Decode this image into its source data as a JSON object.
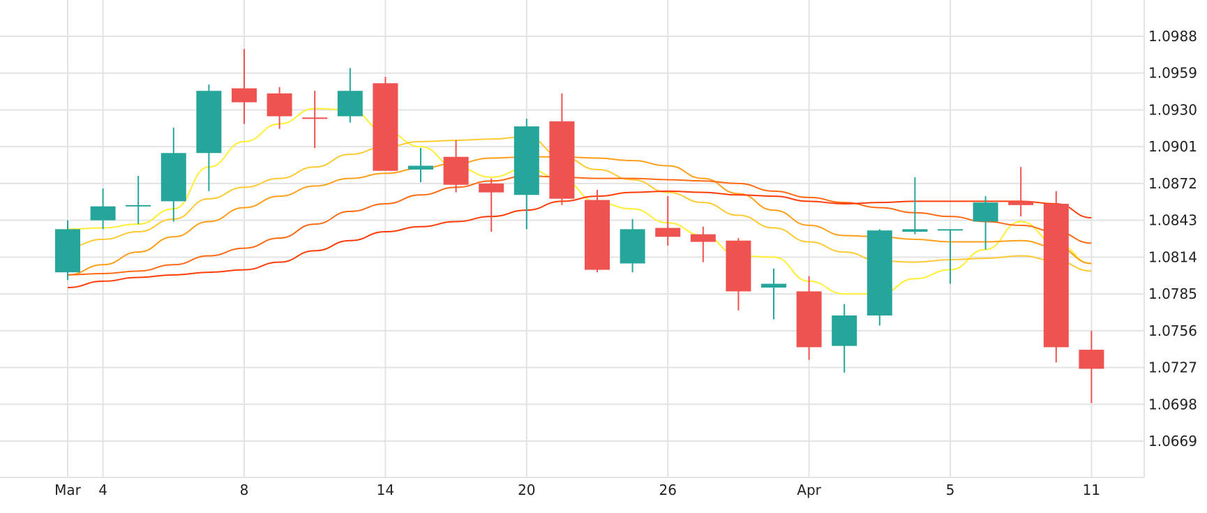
{
  "chart_data": {
    "type": "candlestick",
    "title": "",
    "xlabel": "",
    "ylabel": "",
    "colors": {
      "up": "#26a69a",
      "down": "#ef5350",
      "grid": "#e3e3e3"
    },
    "grid": true,
    "y_axis": {
      "position": "right",
      "ticks": [
        "1.0988",
        "1.0959",
        "1.0930",
        "1.0901",
        "1.0872",
        "1.0843",
        "1.0814",
        "1.0785",
        "1.0756",
        "1.0727",
        "1.0698",
        "1.0669"
      ],
      "ylim": [
        1.064,
        1.1005
      ]
    },
    "x_axis": {
      "ticks": [
        "Mar",
        "4",
        "8",
        "14",
        "20",
        "26",
        "Apr",
        "5",
        "11"
      ]
    },
    "candles": [
      {
        "open": 1.0802,
        "high": 1.0843,
        "low": 1.0796,
        "close": 1.0836
      },
      {
        "open": 1.0843,
        "high": 1.0868,
        "low": 1.0836,
        "close": 1.0854
      },
      {
        "open": 1.0855,
        "high": 1.0878,
        "low": 1.084,
        "close": 1.0855
      },
      {
        "open": 1.0858,
        "high": 1.0916,
        "low": 1.0842,
        "close": 1.0896
      },
      {
        "open": 1.0896,
        "high": 1.095,
        "low": 1.0866,
        "close": 1.0945
      },
      {
        "open": 1.0947,
        "high": 1.0978,
        "low": 1.0919,
        "close": 1.0936
      },
      {
        "open": 1.0943,
        "high": 1.0948,
        "low": 1.0915,
        "close": 1.0925
      },
      {
        "open": 1.0924,
        "high": 1.0945,
        "low": 1.09,
        "close": 1.0923
      },
      {
        "open": 1.0925,
        "high": 1.0963,
        "low": 1.092,
        "close": 1.0945
      },
      {
        "open": 1.0951,
        "high": 1.0956,
        "low": 1.0882,
        "close": 1.0882
      },
      {
        "open": 1.0883,
        "high": 1.09,
        "low": 1.0873,
        "close": 1.0886
      },
      {
        "open": 1.0893,
        "high": 1.0906,
        "low": 1.0865,
        "close": 1.0871
      },
      {
        "open": 1.0872,
        "high": 1.0876,
        "low": 1.0834,
        "close": 1.0865
      },
      {
        "open": 1.0863,
        "high": 1.0923,
        "low": 1.0836,
        "close": 1.0917
      },
      {
        "open": 1.0921,
        "high": 1.0943,
        "low": 1.0855,
        "close": 1.086
      },
      {
        "open": 1.0859,
        "high": 1.0867,
        "low": 1.0802,
        "close": 1.0804
      },
      {
        "open": 1.0809,
        "high": 1.0844,
        "low": 1.0802,
        "close": 1.0836
      },
      {
        "open": 1.0837,
        "high": 1.0862,
        "low": 1.0823,
        "close": 1.083
      },
      {
        "open": 1.0832,
        "high": 1.0838,
        "low": 1.081,
        "close": 1.0826
      },
      {
        "open": 1.0827,
        "high": 1.0829,
        "low": 1.0772,
        "close": 1.0787
      },
      {
        "open": 1.079,
        "high": 1.0805,
        "low": 1.0765,
        "close": 1.0793
      },
      {
        "open": 1.0787,
        "high": 1.0799,
        "low": 1.0733,
        "close": 1.0743
      },
      {
        "open": 1.0744,
        "high": 1.0777,
        "low": 1.0723,
        "close": 1.0768
      },
      {
        "open": 1.0768,
        "high": 1.0836,
        "low": 1.076,
        "close": 1.0835
      },
      {
        "open": 1.0834,
        "high": 1.0877,
        "low": 1.0832,
        "close": 1.0836
      },
      {
        "open": 1.0836,
        "high": 1.0836,
        "low": 1.0793,
        "close": 1.0836
      },
      {
        "open": 1.0842,
        "high": 1.0862,
        "low": 1.082,
        "close": 1.0857
      },
      {
        "open": 1.0858,
        "high": 1.0885,
        "low": 1.0846,
        "close": 1.0855
      },
      {
        "open": 1.0856,
        "high": 1.0866,
        "low": 1.0731,
        "close": 1.0743
      },
      {
        "open": 1.0741,
        "high": 1.0756,
        "low": 1.0699,
        "close": 1.0726
      }
    ],
    "ma_series": [
      {
        "color": "#ffee33",
        "values": [
          1.0836,
          1.0837,
          1.084,
          1.0852,
          1.0885,
          1.0905,
          1.0919,
          1.0931,
          1.093,
          1.0913,
          1.0901,
          1.0885,
          1.0877,
          1.0884,
          1.0875,
          1.0857,
          1.0852,
          1.0841,
          1.0831,
          1.0815,
          1.0814,
          1.0795,
          1.0785,
          1.0785,
          1.0797,
          1.0804,
          1.082,
          1.0842,
          1.0825,
          1.0809
        ]
      },
      {
        "color": "#ffc933",
        "values": [
          1.0822,
          1.0828,
          1.0834,
          1.0844,
          1.086,
          1.0869,
          1.0876,
          1.0885,
          1.0895,
          1.0901,
          1.0905,
          1.0906,
          1.0907,
          1.0909,
          1.0893,
          1.0883,
          1.0875,
          1.0865,
          1.0857,
          1.0847,
          1.0837,
          1.0826,
          1.0818,
          1.0811,
          1.081,
          1.0812,
          1.0813,
          1.0815,
          1.0811,
          1.0803
        ]
      },
      {
        "color": "#ff9f1a",
        "values": [
          1.08,
          1.0808,
          1.0818,
          1.083,
          1.0842,
          1.0853,
          1.0862,
          1.087,
          1.0876,
          1.088,
          1.0884,
          1.0888,
          1.0892,
          1.0893,
          1.0893,
          1.0892,
          1.089,
          1.0886,
          1.0876,
          1.0864,
          1.0851,
          1.0839,
          1.0831,
          1.083,
          1.0828,
          1.0826,
          1.0826,
          1.0827,
          1.0822,
          1.0809
        ]
      },
      {
        "color": "#ff6a14",
        "values": [
          1.08,
          1.0801,
          1.0803,
          1.0808,
          1.0815,
          1.0821,
          1.0829,
          1.084,
          1.085,
          1.0856,
          1.0863,
          1.0869,
          1.0874,
          1.0878,
          1.0877,
          1.0876,
          1.0876,
          1.0875,
          1.0874,
          1.0872,
          1.0866,
          1.0861,
          1.0857,
          1.0853,
          1.0849,
          1.0846,
          1.0842,
          1.0839,
          1.0834,
          1.0825
        ]
      },
      {
        "color": "#ff3d0a",
        "values": [
          1.079,
          1.0795,
          1.0798,
          1.08,
          1.0802,
          1.0804,
          1.081,
          1.0819,
          1.0827,
          1.0834,
          1.0838,
          1.0842,
          1.0846,
          1.0851,
          1.0858,
          1.0862,
          1.0865,
          1.0866,
          1.0865,
          1.0863,
          1.0862,
          1.0858,
          1.0856,
          1.0857,
          1.0858,
          1.0858,
          1.0858,
          1.0858,
          1.0856,
          1.0845
        ]
      }
    ]
  }
}
